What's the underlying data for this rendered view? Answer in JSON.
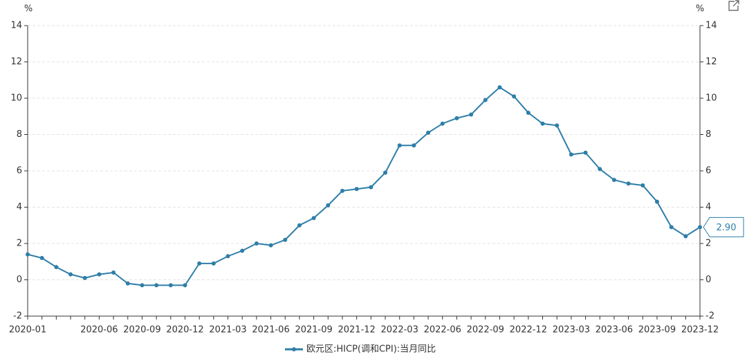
{
  "chart_data": {
    "type": "line",
    "categories": [
      "2020-01",
      null,
      null,
      null,
      null,
      "2020-06",
      null,
      null,
      "2020-09",
      null,
      null,
      "2020-12",
      null,
      null,
      "2021-03",
      null,
      null,
      "2021-06",
      null,
      null,
      "2021-09",
      null,
      null,
      "2021-12",
      null,
      null,
      "2022-03",
      null,
      null,
      "2022-06",
      null,
      null,
      "2022-09",
      null,
      null,
      "2022-12",
      null,
      null,
      "2023-03",
      null,
      null,
      "2023-06",
      null,
      null,
      "2023-09",
      null,
      null,
      "2023-12"
    ],
    "series": [
      {
        "name": "欧元区:HICP(调和CPI):当月同比",
        "color": "#2e7ea8",
        "values": [
          1.4,
          1.2,
          0.7,
          0.3,
          0.1,
          0.3,
          0.4,
          -0.2,
          -0.3,
          -0.3,
          -0.3,
          -0.3,
          0.9,
          0.9,
          1.3,
          1.6,
          2.0,
          1.9,
          2.2,
          3.0,
          3.4,
          4.1,
          4.9,
          5.0,
          5.1,
          5.9,
          7.4,
          7.4,
          8.1,
          8.6,
          8.9,
          9.1,
          9.9,
          10.6,
          10.1,
          9.2,
          8.6,
          8.5,
          6.9,
          7.0,
          6.1,
          5.5,
          5.3,
          5.2,
          4.3,
          2.9,
          2.4,
          2.9
        ],
        "value_labels": [
          null,
          null,
          null,
          null,
          null,
          null,
          null,
          null,
          null,
          null,
          null,
          null,
          null,
          null,
          null,
          null,
          null,
          null,
          null,
          null,
          null,
          null,
          null,
          null,
          null,
          null,
          null,
          null,
          null,
          null,
          null,
          null,
          null,
          null,
          null,
          null,
          null,
          null,
          null,
          null,
          null,
          null,
          null,
          null,
          null,
          null,
          null,
          "2.90"
        ]
      }
    ],
    "ylabel": "%",
    "y2label": "%",
    "ylim": [
      -2,
      14
    ],
    "yticks": [
      -2,
      0,
      2,
      4,
      6,
      8,
      10,
      12,
      14
    ],
    "y2lim": [
      -2,
      14
    ],
    "y2ticks": [
      -2,
      0,
      2,
      4,
      6,
      8,
      10,
      12,
      14
    ],
    "grid": true
  }
}
